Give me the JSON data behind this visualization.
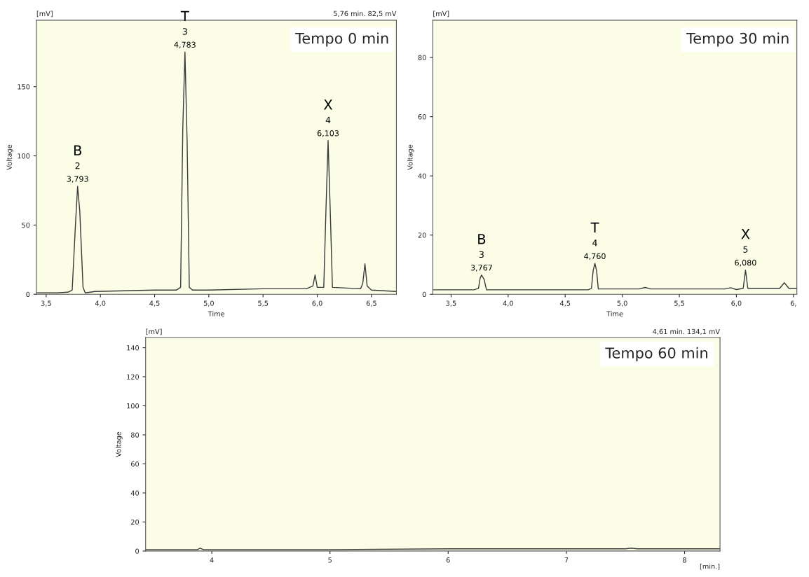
{
  "chart_data": [
    {
      "type": "line",
      "title": "Tempo 0 min",
      "xlabel": "Time",
      "ylabel": "Voltage",
      "xlim": [
        3.41,
        6.73
      ],
      "ylim": [
        0,
        198
      ],
      "xticks": [
        {
          "value": 3.5,
          "label": "3,5"
        },
        {
          "value": 4.0,
          "label": "4,0"
        },
        {
          "value": 4.5,
          "label": "4,5"
        },
        {
          "value": 5.0,
          "label": "5,0"
        },
        {
          "value": 5.5,
          "label": "5,5"
        },
        {
          "value": 6.0,
          "label": "6,0"
        },
        {
          "value": 6.5,
          "label": "6,5"
        }
      ],
      "yticks": [
        0,
        50,
        100,
        150
      ],
      "grid": false,
      "legend": false,
      "series": [
        {
          "color": "#3a3a3a",
          "x": [
            3.41,
            3.6,
            3.7,
            3.74,
            3.77,
            3.79,
            3.81,
            3.84,
            3.86,
            3.95,
            4.5,
            4.7,
            4.74,
            4.76,
            4.78,
            4.8,
            4.82,
            4.85,
            5.0,
            5.5,
            5.9,
            5.96,
            5.98,
            6.0,
            6.06,
            6.08,
            6.1,
            6.12,
            6.14,
            6.4,
            6.42,
            6.44,
            6.46,
            6.5,
            6.73
          ],
          "values": [
            1,
            1,
            1.5,
            3,
            50,
            78,
            60,
            5,
            1,
            2,
            3,
            3,
            5,
            120,
            175,
            110,
            5,
            3,
            3,
            4,
            4,
            6,
            14,
            5,
            5,
            60,
            111,
            60,
            5,
            4,
            8,
            22,
            6,
            3,
            2
          ]
        }
      ],
      "annotations": [
        "[mV]",
        "5,76 min. 82,5 mV",
        {
          "text": "3,793",
          "x": 3.79,
          "y": 78
        },
        {
          "text": "2",
          "x": 3.79,
          "y": 78
        },
        {
          "text": "B",
          "x": 3.79,
          "y": 78
        },
        {
          "text": "4,783",
          "x": 4.78,
          "y": 175
        },
        {
          "text": "3",
          "x": 4.78,
          "y": 175
        },
        {
          "text": "T",
          "x": 4.78,
          "y": 175
        },
        {
          "text": "6,103",
          "x": 6.1,
          "y": 111
        },
        {
          "text": "4",
          "x": 6.1,
          "y": 111
        },
        {
          "text": "X",
          "x": 6.1,
          "y": 111
        }
      ]
    },
    {
      "type": "line",
      "title": "Tempo 30 min",
      "xlabel": "Time",
      "ylabel": "Voltage",
      "xlim": [
        3.34,
        6.53
      ],
      "ylim": [
        0,
        92.6
      ],
      "xticks": [
        {
          "value": 3.5,
          "label": "3,5"
        },
        {
          "value": 4.0,
          "label": "4,0"
        },
        {
          "value": 4.5,
          "label": "4,5"
        },
        {
          "value": 5.0,
          "label": "5,0"
        },
        {
          "value": 5.5,
          "label": "5,5"
        },
        {
          "value": 6.0,
          "label": "6,0"
        },
        {
          "value": 6.5,
          "label": "6,"
        }
      ],
      "yticks": [
        0,
        20,
        40,
        60,
        80
      ],
      "grid": false,
      "legend": false,
      "series": [
        {
          "color": "#3a3a3a",
          "x": [
            3.34,
            3.7,
            3.74,
            3.755,
            3.767,
            3.79,
            3.81,
            4.0,
            4.7,
            4.73,
            4.745,
            4.76,
            4.775,
            4.79,
            5.15,
            5.2,
            5.25,
            5.9,
            5.95,
            6.0,
            6.06,
            6.08,
            6.1,
            6.38,
            6.42,
            6.46,
            6.53
          ],
          "values": [
            1.5,
            1.5,
            2,
            5.5,
            6.5,
            5,
            1.5,
            1.5,
            1.5,
            2,
            8,
            10.4,
            8,
            1.8,
            1.8,
            2.3,
            1.8,
            1.8,
            2.2,
            1.6,
            2,
            8.2,
            2,
            2,
            3.9,
            2,
            2
          ]
        }
      ],
      "annotations": [
        "[mV]",
        {
          "text": "3,767",
          "x": 3.767,
          "y": 6.5
        },
        {
          "text": "3",
          "x": 3.767,
          "y": 6.5
        },
        {
          "text": "B",
          "x": 3.767,
          "y": 6.5
        },
        {
          "text": "4,760",
          "x": 4.76,
          "y": 10.4
        },
        {
          "text": "4",
          "x": 4.76,
          "y": 10.4
        },
        {
          "text": "T",
          "x": 4.76,
          "y": 10.4
        },
        {
          "text": "6,080",
          "x": 6.08,
          "y": 8.2
        },
        {
          "text": "5",
          "x": 6.08,
          "y": 8.2
        },
        {
          "text": "X",
          "x": 6.08,
          "y": 8.2
        }
      ]
    },
    {
      "type": "line",
      "title": "Tempo 60 min",
      "ylabel": "Voltage",
      "xlim": [
        3.44,
        8.3
      ],
      "ylim": [
        0,
        147
      ],
      "xticks": [
        4,
        5,
        6,
        7,
        8
      ],
      "yticks": [
        0,
        20,
        40,
        60,
        80,
        100,
        120,
        140
      ],
      "grid": false,
      "legend": false,
      "series": [
        {
          "color": "#3a3a3a",
          "x": [
            3.44,
            3.88,
            3.9,
            3.93,
            5.0,
            6.0,
            7.5,
            7.55,
            7.6,
            8.3
          ],
          "values": [
            1,
            1,
            2,
            1,
            1,
            1.5,
            1.5,
            2,
            1.5,
            1.5
          ]
        }
      ],
      "annotations": [
        "[mV]",
        "4,61 min. 134,1 mV",
        "[min.]"
      ]
    }
  ]
}
